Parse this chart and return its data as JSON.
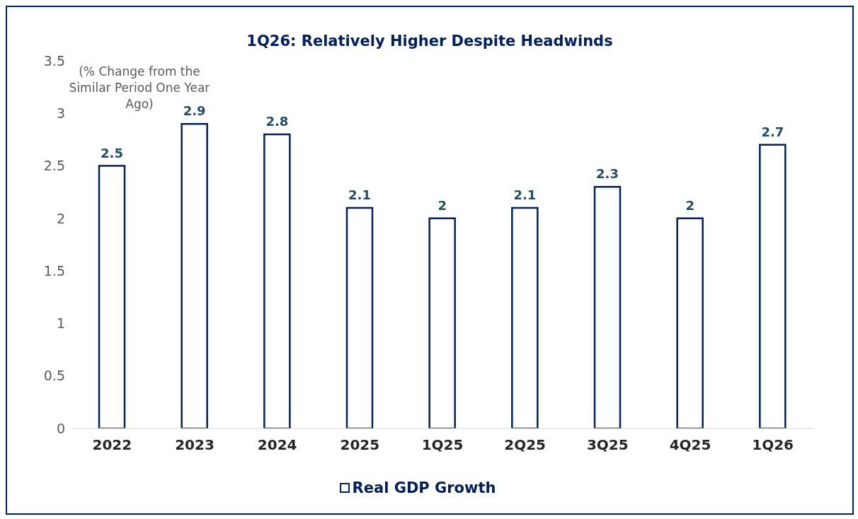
{
  "chart_data": {
    "type": "bar",
    "title": "1Q26: Relatively Higher Despite Headwinds",
    "ylabel": "(% Change from the Similar Period One Year Ago)",
    "categories": [
      "2022",
      "2023",
      "2024",
      "2025",
      "1Q25",
      "2Q25",
      "3Q25",
      "4Q25",
      "1Q26"
    ],
    "series": [
      {
        "name": "Real GDP Growth",
        "color": "#002060",
        "values": [
          2.5,
          2.9,
          2.8,
          2.1,
          2,
          2.1,
          2.3,
          2,
          2.7
        ]
      }
    ],
    "ylim": [
      0,
      3.5
    ],
    "yticks": [
      0,
      0.5,
      1,
      1.5,
      2,
      2.5,
      3,
      3.5
    ],
    "grid": false,
    "legend": "bottom",
    "data_labels": true
  }
}
